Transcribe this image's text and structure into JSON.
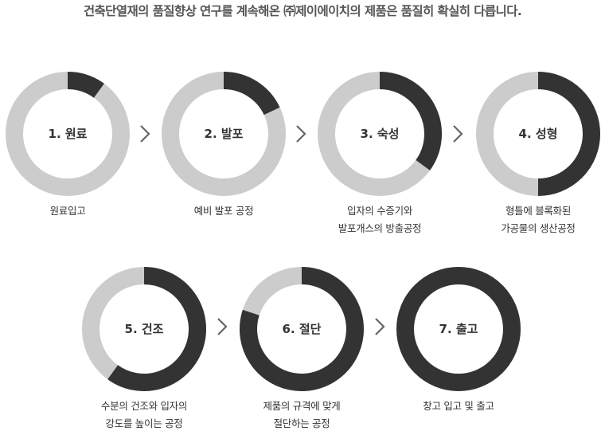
{
  "headline": "건축단열재의 품질향상 연구를 계속해온 ㈜제이에이치의 제품은 품질히 확실히 다릅니다.",
  "colors": {
    "progress": "#333333",
    "track": "#cccccc",
    "text": "#333333",
    "arrow": "#666666"
  },
  "arrow_icon": "chevron-right-icon",
  "steps": [
    {
      "title": "1. 원료",
      "progress": 0.1,
      "caption": [
        "원료입고"
      ]
    },
    {
      "title": "2. 발포",
      "progress": 0.18,
      "caption": [
        "예비 발포 공정"
      ]
    },
    {
      "title": "3. 숙성",
      "progress": 0.35,
      "caption": [
        "입자의 수증기와",
        "발포개스의 방출공정"
      ]
    },
    {
      "title": "4. 성형",
      "progress": 0.5,
      "caption": [
        "형틀에 블록화된",
        "가공물의 생산공정"
      ]
    },
    {
      "title": "5. 건조",
      "progress": 0.6,
      "caption": [
        "수분의 건조와 입자의",
        "강도를 높이는 공정"
      ]
    },
    {
      "title": "6. 절단",
      "progress": 0.8,
      "caption": [
        "제품의 규격에 맞게",
        "절단하는 공정"
      ]
    },
    {
      "title": "7. 출고",
      "progress": 1.0,
      "caption": [
        "창고 입고 및 출고"
      ]
    }
  ]
}
